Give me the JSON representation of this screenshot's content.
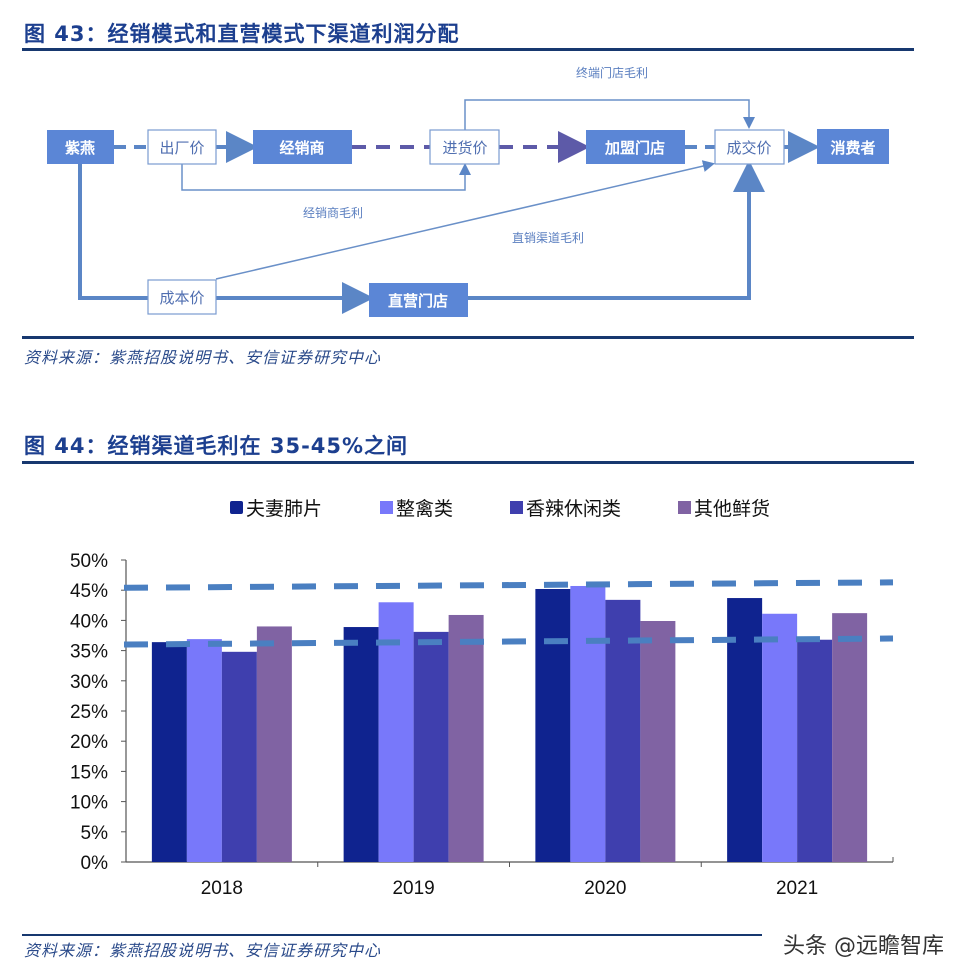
{
  "figure43": {
    "title": "图 43：经销模式和直营模式下渠道利润分配",
    "source": "资料来源：紫燕招股说明书、安信证券研究中心",
    "nodes": {
      "ziyan": "紫燕",
      "factory_price": "出厂价",
      "distributor": "经销商",
      "purchase_price": "进货价",
      "franchise_store": "加盟门店",
      "deal_price": "成交价",
      "consumer": "消费者",
      "cost_price": "成本价",
      "direct_store": "直营门店"
    },
    "labels": {
      "terminal_margin": "终端门店毛利",
      "distributor_margin": "经销商毛利",
      "direct_margin": "直销渠道毛利"
    }
  },
  "figure44": {
    "title": "图 44：经销渠道毛利在 35-45%之间",
    "source": "资料来源：紫燕招股说明书、安信证券研究中心"
  },
  "watermark": "头条 @远瞻智库",
  "colors": {
    "title_blue": "#1c3f8f",
    "node_fill": "#5b86d6",
    "series": [
      "#0f238f",
      "#7878fa",
      "#3f3fae",
      "#8063a3"
    ],
    "reference_line": "#4a7fc1"
  },
  "chart_data": {
    "type": "bar",
    "title": "经销渠道毛利在 35-45%之间",
    "categories": [
      "2018",
      "2019",
      "2020",
      "2021"
    ],
    "series": [
      {
        "name": "夫妻肺片",
        "values": [
          36.4,
          38.9,
          45.2,
          43.7
        ]
      },
      {
        "name": "整禽类",
        "values": [
          36.9,
          43.0,
          45.7,
          41.1
        ]
      },
      {
        "name": "香辣休闲类",
        "values": [
          34.8,
          38.1,
          43.4,
          36.8
        ]
      },
      {
        "name": "其他鲜货",
        "values": [
          39.0,
          40.9,
          39.9,
          41.2
        ]
      }
    ],
    "yticks": [
      "0%",
      "5%",
      "10%",
      "15%",
      "20%",
      "25%",
      "30%",
      "35%",
      "40%",
      "45%",
      "50%"
    ],
    "ylim": [
      0,
      50
    ],
    "xlabel": "",
    "ylabel": "",
    "grid": false,
    "legend_position": "top",
    "annotations": [
      {
        "type": "dashed-line",
        "label": "upper bound",
        "from": 45.4,
        "to": 46.3
      },
      {
        "type": "dashed-line",
        "label": "lower bound",
        "from": 36.0,
        "to": 37.0
      }
    ]
  }
}
